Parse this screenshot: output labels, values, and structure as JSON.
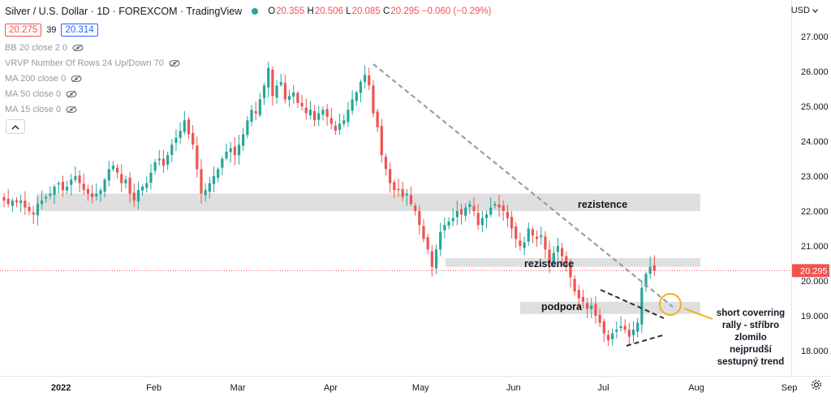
{
  "header": {
    "symbol": "Silver / U.S. Dollar · 1D · FOREXCOM · TradingView",
    "ohlc": [
      {
        "k": "O",
        "v": "20.355"
      },
      {
        "k": "H",
        "v": "20.506"
      },
      {
        "k": "L",
        "v": "20.085"
      },
      {
        "k": "C",
        "v": "20.295"
      }
    ],
    "change": "−0.060 (−0.29%)",
    "sell": "20.275",
    "spread": "39",
    "buy": "20.314"
  },
  "indicators": [
    "BB 20 close 2 0",
    "VRVP Number Of Rows 24 Up/Down 70",
    "MA 200 close 0",
    "MA 50 close 0",
    "MA 15 close 0"
  ],
  "currency_label": "USD",
  "colors": {
    "up": "#26a69a",
    "down": "#ef5350",
    "zone": "#d9d9d9",
    "trendline": "#9e9e9e",
    "triangle": "#2a2e39",
    "highlight": "#f2b01e",
    "price_line": "#ef5350"
  },
  "chart_data": {
    "type": "candlestick",
    "xlabel": "",
    "ylabel": "",
    "ylim": [
      17.6,
      27.5
    ],
    "y_ticks": [
      "27.000",
      "26.000",
      "25.000",
      "24.000",
      "23.000",
      "22.000",
      "21.000",
      "20.000",
      "19.000",
      "18.000"
    ],
    "x_ticks": [
      "2022",
      "Feb",
      "Mar",
      "Apr",
      "May",
      "Jun",
      "Jul",
      "Aug",
      "Sep"
    ],
    "last_price": "20.295",
    "series": [
      {
        "name": "",
        "start_date": "2021-12-13",
        "close": [
          22.3,
          22.2,
          22.3,
          22.25,
          22.3,
          22.1,
          22.0,
          21.9,
          22.2,
          22.3,
          22.4,
          22.5,
          22.7,
          22.8,
          22.6,
          22.7,
          22.9,
          23.0,
          22.8,
          22.6,
          22.5,
          22.4,
          22.5,
          22.6,
          22.9,
          23.2,
          23.3,
          23.1,
          22.8,
          22.9,
          22.5,
          22.3,
          22.6,
          22.7,
          22.8,
          23.1,
          23.4,
          23.5,
          23.3,
          23.6,
          23.9,
          24.1,
          24.3,
          24.6,
          24.2,
          23.9,
          23.2,
          22.5,
          22.6,
          22.8,
          23.0,
          23.2,
          23.5,
          23.7,
          23.8,
          23.6,
          23.9,
          24.2,
          24.6,
          24.9,
          24.8,
          25.2,
          25.6,
          26.1,
          25.3,
          25.6,
          25.7,
          25.2,
          25.3,
          25.4,
          25.1,
          25.0,
          24.8,
          24.9,
          24.6,
          24.8,
          24.9,
          24.7,
          24.5,
          24.3,
          24.5,
          24.6,
          24.9,
          25.2,
          25.4,
          25.7,
          25.9,
          25.6,
          24.8,
          24.4,
          23.6,
          23.2,
          22.8,
          22.6,
          22.6,
          22.4,
          22.5,
          22.2,
          22.0,
          21.6,
          21.2,
          20.9,
          20.4,
          20.9,
          21.4,
          21.6,
          21.7,
          21.8,
          22.0,
          21.9,
          22.1,
          22.2,
          22.0,
          21.6,
          21.8,
          21.9,
          22.1,
          22.2,
          22.1,
          22.0,
          21.8,
          21.5,
          21.2,
          21.0,
          21.1,
          21.5,
          21.3,
          21.2,
          21.3,
          20.9,
          20.5,
          20.8,
          21.0,
          20.7,
          20.4,
          20.1,
          19.7,
          19.5,
          19.4,
          19.2,
          19.3,
          19.0,
          18.8,
          18.5,
          18.3,
          18.5,
          18.6,
          18.7,
          18.6,
          18.4,
          18.6,
          18.8,
          19.8,
          20.2,
          20.4,
          20.3
        ]
      }
    ],
    "annotations": [
      {
        "kind": "zone",
        "label": "rezistence",
        "y": [
          22.0,
          22.5
        ]
      },
      {
        "kind": "zone",
        "label": "rezistence",
        "y": [
          20.4,
          20.65
        ]
      },
      {
        "kind": "zone",
        "label": "podpora",
        "y": [
          19.05,
          19.4
        ]
      },
      {
        "kind": "callout",
        "label": "short coverring rally - stříbro zlomilo nejprudší sestupný trend"
      }
    ]
  }
}
